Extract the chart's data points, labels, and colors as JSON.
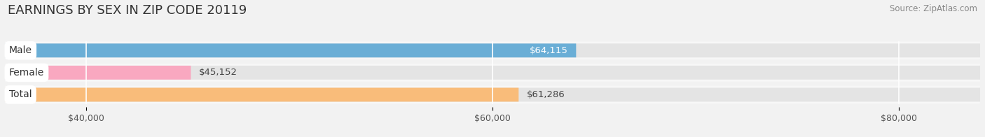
{
  "title": "EARNINGS BY SEX IN ZIP CODE 20119",
  "source": "Source: ZipAtlas.com",
  "categories": [
    "Male",
    "Female",
    "Total"
  ],
  "values": [
    64115,
    45152,
    61286
  ],
  "bar_colors": [
    "#6aaed6",
    "#f9a8c0",
    "#f9bc7a"
  ],
  "value_labels": [
    "$64,115",
    "$45,152",
    "$61,286"
  ],
  "value_inside": [
    true,
    false,
    false
  ],
  "xlim_min": 36000,
  "xlim_max": 84000,
  "xticks": [
    40000,
    60000,
    80000
  ],
  "xtick_labels": [
    "$40,000",
    "$60,000",
    "$80,000"
  ],
  "background_color": "#f2f2f2",
  "bar_bg_color": "#e4e4e4",
  "bar_row_bg": "#f7f7f7",
  "title_fontsize": 13,
  "source_fontsize": 8.5,
  "label_fontsize": 10,
  "value_fontsize": 9.5,
  "tick_fontsize": 9
}
